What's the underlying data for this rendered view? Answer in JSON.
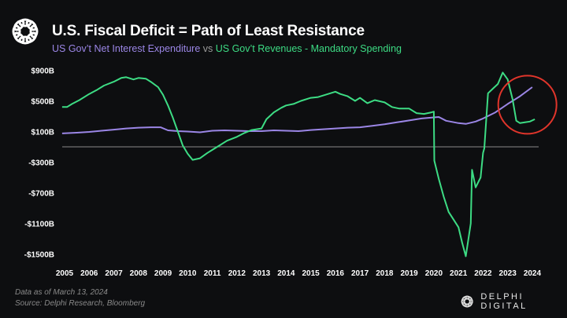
{
  "header": {
    "logo_icon": "delphi-knot-icon",
    "title": "U.S. Fiscal Deficit = Path of Least Resistance",
    "subtitle_part1": "US Gov’t Net Interest Expenditure",
    "subtitle_vs": "vs",
    "subtitle_part2": "US Gov’t Revenues - Mandatory Spending"
  },
  "footer": {
    "note": "Data as of March 13, 2024",
    "source": "Source: Delphi Research, Bloomberg",
    "brand": "DELPHI DIGITAL"
  },
  "colors": {
    "background": "#0d0e10",
    "interest": "#9b86e6",
    "revenue_minus_mandatory": "#3ddc84",
    "zero_line": "#8a8a8a",
    "highlight_circle": "#e0352b"
  },
  "chart_data": {
    "type": "line",
    "title": "U.S. Fiscal Deficit = Path of Least Resistance",
    "xlabel": "",
    "ylabel": "",
    "xlim": [
      2004.9,
      2024.2
    ],
    "ylim": [
      -1500,
      900
    ],
    "grid": false,
    "legend": "subtitle",
    "y_ticks": [
      900,
      500,
      100,
      -300,
      -700,
      -1100,
      -1500
    ],
    "y_tick_labels": [
      "$900B",
      "$500B",
      "$100B",
      "-$300B",
      "-$700B",
      "-$1100B",
      "-$1500B"
    ],
    "x_ticks": [
      2005,
      2006,
      2007,
      2008,
      2009,
      2010,
      2011,
      2012,
      2013,
      2014,
      2015,
      2016,
      2017,
      2018,
      2019,
      2020,
      2021,
      2022,
      2023,
      2024
    ],
    "x_tick_labels": [
      "2005",
      "2006",
      "2007",
      "2008",
      "2009",
      "2010",
      "2011",
      "2012",
      "2013",
      "2014",
      "2015",
      "2016",
      "2017",
      "2018",
      "2019",
      "2020",
      "2021",
      "2022",
      "2023",
      "2024"
    ],
    "reference_line": 0,
    "annotations": [
      {
        "type": "circle",
        "description": "highlight of 2023-2024 crossover",
        "x": 2023.8,
        "y": 550
      }
    ],
    "series": [
      {
        "name": "US Gov’t Net Interest Expenditure",
        "color": "#9b86e6",
        "x": [
          2004.9,
          2005.5,
          2006,
          2006.5,
          2007,
          2007.5,
          2008,
          2008.5,
          2008.9,
          2009.2,
          2009.6,
          2010,
          2010.5,
          2011,
          2011.5,
          2012,
          2012.5,
          2013,
          2013.5,
          2014,
          2014.5,
          2015,
          2015.5,
          2016,
          2016.5,
          2017,
          2017.5,
          2018,
          2018.5,
          2019,
          2019.5,
          2020,
          2020.2,
          2020.5,
          2021,
          2021.3,
          2021.7,
          2022,
          2022.5,
          2023,
          2023.5,
          2024
        ],
        "y": [
          175,
          185,
          195,
          210,
          225,
          240,
          250,
          255,
          255,
          215,
          205,
          200,
          190,
          210,
          215,
          210,
          205,
          205,
          215,
          210,
          205,
          220,
          230,
          240,
          250,
          255,
          275,
          295,
          320,
          345,
          370,
          385,
          390,
          340,
          310,
          300,
          330,
          370,
          450,
          560,
          660,
          780
        ]
      },
      {
        "name": "US Gov’t Revenues - Mandatory Spending",
        "color": "#3ddc84",
        "x": [
          2004.9,
          2005.1,
          2005.3,
          2005.6,
          2006,
          2006.3,
          2006.6,
          2007,
          2007.3,
          2007.5,
          2007.8,
          2008,
          2008.3,
          2008.5,
          2008.8,
          2009,
          2009.2,
          2009.4,
          2009.6,
          2009.8,
          2010,
          2010.2,
          2010.5,
          2010.8,
          2011,
          2011.3,
          2011.6,
          2012,
          2012.3,
          2012.6,
          2013,
          2013.2,
          2013.5,
          2013.8,
          2014,
          2014.3,
          2014.6,
          2015,
          2015.3,
          2015.6,
          2016,
          2016.2,
          2016.5,
          2016.8,
          2017,
          2017.3,
          2017.6,
          2018,
          2018.3,
          2018.6,
          2019,
          2019.3,
          2019.6,
          2019.9,
          2020.0,
          2020.02,
          2020.2,
          2020.4,
          2020.6,
          2020.8,
          2021,
          2021.15,
          2021.3,
          2021.5,
          2021.55,
          2021.7,
          2021.9,
          2022.0,
          2022.05,
          2022.2,
          2022.4,
          2022.6,
          2022.8,
          2023.0,
          2023.2,
          2023.35,
          2023.5,
          2023.7,
          2023.9,
          2024.1
        ],
        "y": [
          520,
          520,
          560,
          610,
          690,
          740,
          800,
          850,
          900,
          910,
          880,
          900,
          890,
          850,
          780,
          680,
          540,
          380,
          200,
          20,
          -90,
          -170,
          -150,
          -80,
          -40,
          20,
          80,
          130,
          180,
          220,
          240,
          360,
          450,
          510,
          540,
          560,
          600,
          640,
          650,
          680,
          720,
          690,
          660,
          600,
          640,
          570,
          610,
          580,
          520,
          500,
          500,
          440,
          430,
          450,
          460,
          -180,
          -420,
          -650,
          -850,
          -950,
          -1050,
          -1250,
          -1430,
          -1000,
          -300,
          -530,
          -400,
          -80,
          -20,
          700,
          760,
          820,
          970,
          880,
          620,
          340,
          310,
          320,
          330,
          360
        ]
      }
    ]
  }
}
